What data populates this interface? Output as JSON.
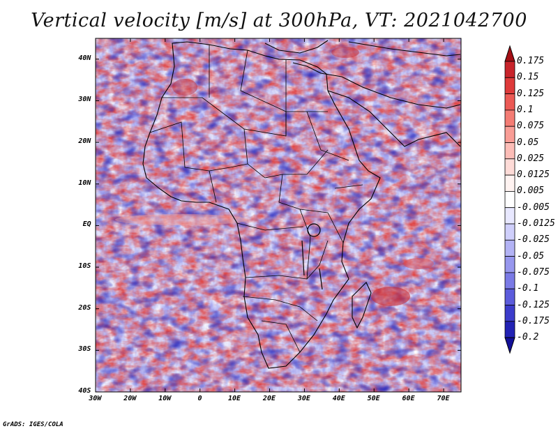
{
  "title": "Vertical velocity [m/s] at 300hPa, VT: 2021042700",
  "footer": "GrADS: IGES/COLA",
  "map": {
    "lon_range": [
      -30,
      75
    ],
    "lat_range": [
      -40,
      45
    ],
    "lon_ticks": [
      "30W",
      "20W",
      "10W",
      "0",
      "10E",
      "20E",
      "30E",
      "40E",
      "50E",
      "60E",
      "70E"
    ],
    "lat_ticks": [
      "40N",
      "30N",
      "20N",
      "10N",
      "EQ",
      "10S",
      "20S",
      "30S",
      "40S"
    ]
  },
  "colorbar": {
    "levels": [
      "0.175",
      "0.15",
      "0.125",
      "0.1",
      "0.075",
      "0.05",
      "0.025",
      "0.0125",
      "0.005",
      "-0.005",
      "-0.0125",
      "-0.025",
      "-0.05",
      "-0.075",
      "-0.1",
      "-0.125",
      "-0.175",
      "-0.2"
    ],
    "colors": [
      "#a50f15",
      "#c8242b",
      "#de3a3a",
      "#ec5a55",
      "#f47c74",
      "#f99d96",
      "#fcbdb7",
      "#fedbd7",
      "#fff3f1",
      "#ffffff",
      "#e8e8ff",
      "#cfcffb",
      "#b3b3f5",
      "#9797ee",
      "#7a7ae6",
      "#5c5cdc",
      "#3c3ccb",
      "#2222b4",
      "#120f98"
    ]
  },
  "colors": {
    "positive": "#d73027",
    "negative": "#4a4ad8",
    "coast": "#000000"
  }
}
